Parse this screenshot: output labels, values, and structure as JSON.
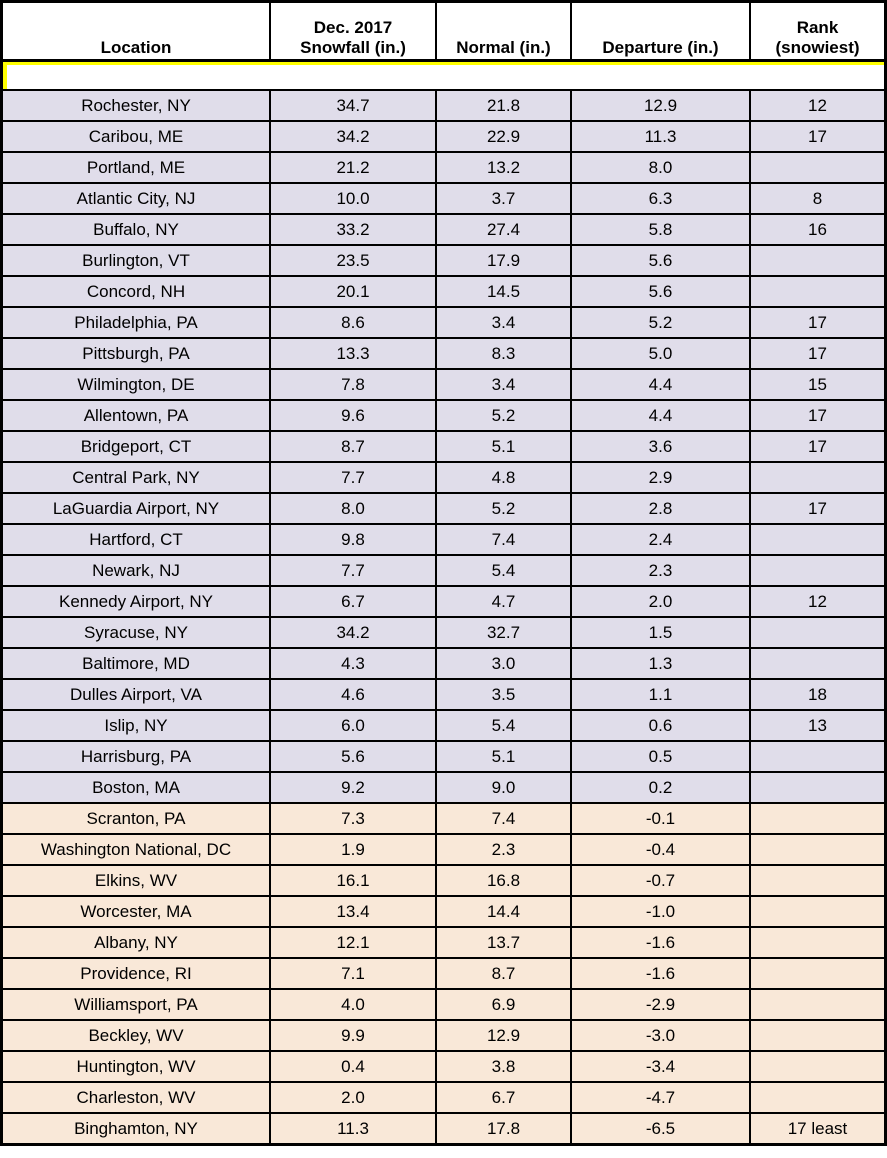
{
  "colors": {
    "above_normal_row_bg": "#e0ddea",
    "below_normal_row_bg": "#f9e8d8",
    "spacer_accent": "#ffff00",
    "grid_border": "#000000",
    "header_bg": "#ffffff",
    "text": "#000000"
  },
  "header": {
    "location": "Location",
    "snowfall_line1": "Dec. 2017",
    "snowfall_line2": "Snowfall (in.)",
    "normal": "Normal (in.)",
    "departure": "Departure (in.)",
    "rank_line1": "Rank",
    "rank_line2": "(snowiest)"
  },
  "spacer_row": {
    "text": ""
  },
  "chart_data": {
    "type": "table",
    "columns": [
      "Location",
      "Dec. 2017 Snowfall (in.)",
      "Normal (in.)",
      "Departure (in.)",
      "Rank (snowiest)"
    ],
    "row_color_rule": "departure >= 0 -> lavender (above normal); departure < 0 -> peach (below normal)",
    "rows": [
      {
        "location": "Rochester, NY",
        "snowfall": "34.7",
        "normal": "21.8",
        "departure": "12.9",
        "rank": "12"
      },
      {
        "location": "Caribou, ME",
        "snowfall": "34.2",
        "normal": "22.9",
        "departure": "11.3",
        "rank": "17"
      },
      {
        "location": "Portland, ME",
        "snowfall": "21.2",
        "normal": "13.2",
        "departure": "8.0",
        "rank": ""
      },
      {
        "location": "Atlantic City, NJ",
        "snowfall": "10.0",
        "normal": "3.7",
        "departure": "6.3",
        "rank": "8"
      },
      {
        "location": "Buffalo, NY",
        "snowfall": "33.2",
        "normal": "27.4",
        "departure": "5.8",
        "rank": "16"
      },
      {
        "location": "Burlington, VT",
        "snowfall": "23.5",
        "normal": "17.9",
        "departure": "5.6",
        "rank": ""
      },
      {
        "location": "Concord, NH",
        "snowfall": "20.1",
        "normal": "14.5",
        "departure": "5.6",
        "rank": ""
      },
      {
        "location": "Philadelphia, PA",
        "snowfall": "8.6",
        "normal": "3.4",
        "departure": "5.2",
        "rank": "17"
      },
      {
        "location": "Pittsburgh, PA",
        "snowfall": "13.3",
        "normal": "8.3",
        "departure": "5.0",
        "rank": "17"
      },
      {
        "location": "Wilmington, DE",
        "snowfall": "7.8",
        "normal": "3.4",
        "departure": "4.4",
        "rank": "15"
      },
      {
        "location": "Allentown, PA",
        "snowfall": "9.6",
        "normal": "5.2",
        "departure": "4.4",
        "rank": "17"
      },
      {
        "location": "Bridgeport, CT",
        "snowfall": "8.7",
        "normal": "5.1",
        "departure": "3.6",
        "rank": "17"
      },
      {
        "location": "Central Park, NY",
        "snowfall": "7.7",
        "normal": "4.8",
        "departure": "2.9",
        "rank": ""
      },
      {
        "location": "LaGuardia Airport, NY",
        "snowfall": "8.0",
        "normal": "5.2",
        "departure": "2.8",
        "rank": "17"
      },
      {
        "location": "Hartford, CT",
        "snowfall": "9.8",
        "normal": "7.4",
        "departure": "2.4",
        "rank": ""
      },
      {
        "location": "Newark, NJ",
        "snowfall": "7.7",
        "normal": "5.4",
        "departure": "2.3",
        "rank": ""
      },
      {
        "location": "Kennedy Airport, NY",
        "snowfall": "6.7",
        "normal": "4.7",
        "departure": "2.0",
        "rank": "12"
      },
      {
        "location": "Syracuse, NY",
        "snowfall": "34.2",
        "normal": "32.7",
        "departure": "1.5",
        "rank": ""
      },
      {
        "location": "Baltimore, MD",
        "snowfall": "4.3",
        "normal": "3.0",
        "departure": "1.3",
        "rank": ""
      },
      {
        "location": "Dulles Airport, VA",
        "snowfall": "4.6",
        "normal": "3.5",
        "departure": "1.1",
        "rank": "18"
      },
      {
        "location": "Islip, NY",
        "snowfall": "6.0",
        "normal": "5.4",
        "departure": "0.6",
        "rank": "13"
      },
      {
        "location": "Harrisburg, PA",
        "snowfall": "5.6",
        "normal": "5.1",
        "departure": "0.5",
        "rank": ""
      },
      {
        "location": "Boston, MA",
        "snowfall": "9.2",
        "normal": "9.0",
        "departure": "0.2",
        "rank": ""
      },
      {
        "location": "Scranton, PA",
        "snowfall": "7.3",
        "normal": "7.4",
        "departure": "-0.1",
        "rank": ""
      },
      {
        "location": "Washington National, DC",
        "snowfall": "1.9",
        "normal": "2.3",
        "departure": "-0.4",
        "rank": ""
      },
      {
        "location": "Elkins, WV",
        "snowfall": "16.1",
        "normal": "16.8",
        "departure": "-0.7",
        "rank": ""
      },
      {
        "location": "Worcester, MA",
        "snowfall": "13.4",
        "normal": "14.4",
        "departure": "-1.0",
        "rank": ""
      },
      {
        "location": "Albany, NY",
        "snowfall": "12.1",
        "normal": "13.7",
        "departure": "-1.6",
        "rank": ""
      },
      {
        "location": "Providence, RI",
        "snowfall": "7.1",
        "normal": "8.7",
        "departure": "-1.6",
        "rank": ""
      },
      {
        "location": "Williamsport, PA",
        "snowfall": "4.0",
        "normal": "6.9",
        "departure": "-2.9",
        "rank": ""
      },
      {
        "location": "Beckley, WV",
        "snowfall": "9.9",
        "normal": "12.9",
        "departure": "-3.0",
        "rank": ""
      },
      {
        "location": "Huntington, WV",
        "snowfall": "0.4",
        "normal": "3.8",
        "departure": "-3.4",
        "rank": ""
      },
      {
        "location": "Charleston, WV",
        "snowfall": "2.0",
        "normal": "6.7",
        "departure": "-4.7",
        "rank": ""
      },
      {
        "location": "Binghamton, NY",
        "snowfall": "11.3",
        "normal": "17.8",
        "departure": "-6.5",
        "rank": "17 least"
      }
    ]
  }
}
